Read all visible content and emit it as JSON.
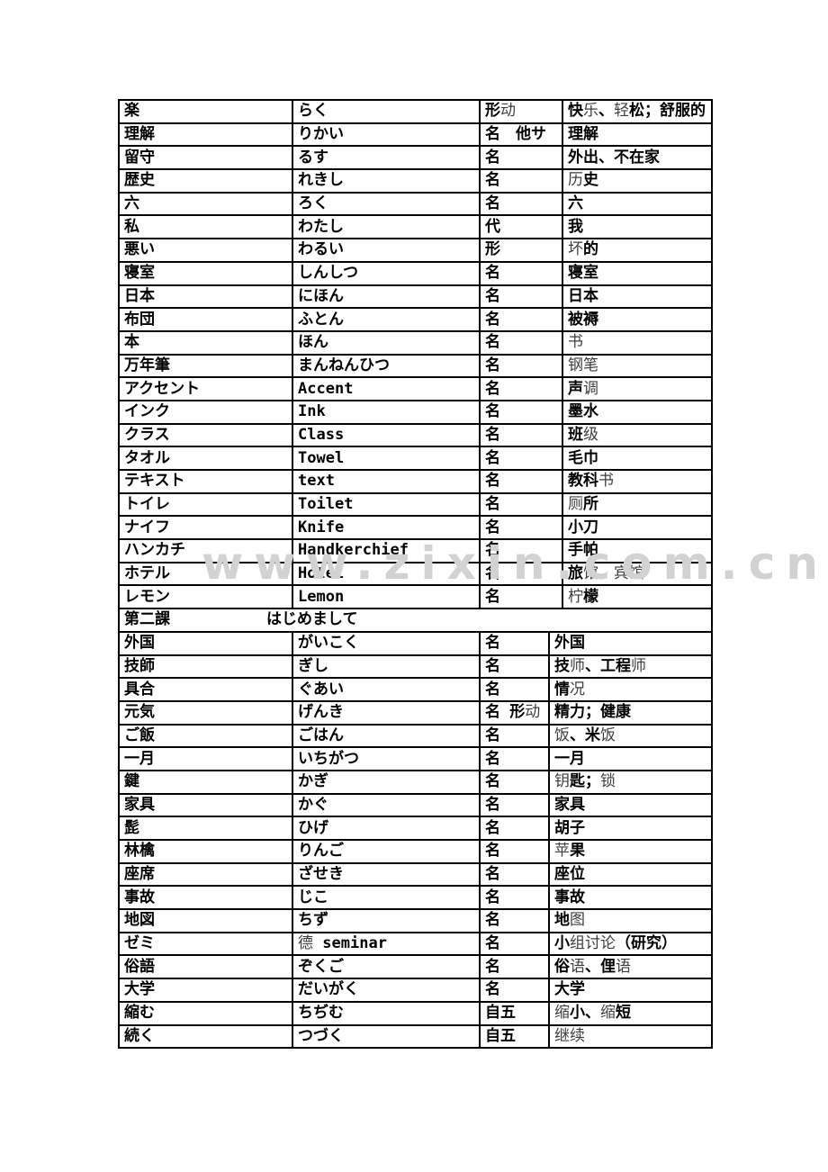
{
  "watermark": {
    "text": "www.zixin.com.cn",
    "color": "#d2d2d2"
  },
  "columns": [
    "word",
    "reading",
    "part_of_speech",
    "meaning"
  ],
  "light_chars": "动乐轻历坏书钢笔调级厕馆宾柠师况饭钥锁苹图德组讨论语缩继续",
  "section1": {
    "rows": [
      [
        "楽",
        "らく",
        "形动",
        "快乐、轻松；舒服的"
      ],
      [
        "理解",
        "りかい",
        "名　他サ",
        "理解"
      ],
      [
        "留守",
        "るす",
        "名",
        "外出、不在家"
      ],
      [
        "歴史",
        "れきし",
        "名",
        "历史"
      ],
      [
        "六",
        "ろく",
        "名",
        "六"
      ],
      [
        "私",
        "わたし",
        "代",
        "我"
      ],
      [
        "悪い",
        "わるい",
        "形",
        "坏的"
      ],
      [
        "寝室",
        "しんしつ",
        "名",
        "寝室"
      ],
      [
        "日本",
        "にほん",
        "名",
        "日本"
      ],
      [
        "布団",
        "ふとん",
        "名",
        "被褥"
      ],
      [
        "本",
        "ほん",
        "名",
        "书"
      ],
      [
        "万年筆",
        "まんねんひつ",
        "名",
        "钢笔"
      ],
      [
        "アクセント",
        "Accent",
        "名",
        "声调"
      ],
      [
        "インク",
        "Ink",
        "名",
        "墨水"
      ],
      [
        "クラス",
        "Class",
        "名",
        "班级"
      ],
      [
        "タオル",
        "Towel",
        "名",
        "毛巾"
      ],
      [
        "テキスト",
        "text",
        "名",
        "教科书"
      ],
      [
        "トイレ",
        "Toilet",
        "名",
        "厕所"
      ],
      [
        "ナイフ",
        "Knife",
        "名",
        "小刀"
      ],
      [
        "ハンカチ",
        "Handkerchief",
        "名",
        "手帕"
      ],
      [
        "ホテル",
        "Hotel",
        "名",
        "旅馆、宾馆"
      ],
      [
        "レモン",
        "Lemon",
        "名",
        "柠檬"
      ]
    ]
  },
  "lesson_header": {
    "lesson": "第二課",
    "title": "はじめまして"
  },
  "section2": {
    "rows": [
      [
        "外国",
        "がいこく",
        "名",
        "外国"
      ],
      [
        "技師",
        "ぎし",
        "名",
        "技师、工程师"
      ],
      [
        "具合",
        "ぐあい",
        "名",
        "情况"
      ],
      [
        "元気",
        "げんき",
        "名 形动",
        "精力；健康"
      ],
      [
        "ご飯",
        "ごはん",
        "名",
        "饭、米饭"
      ],
      [
        "一月",
        "いちがつ",
        "名",
        "一月"
      ],
      [
        "鍵",
        "かぎ",
        "名",
        "钥匙；锁"
      ],
      [
        "家具",
        "かぐ",
        "名",
        "家具"
      ],
      [
        "髭",
        "ひげ",
        "名",
        "胡子"
      ],
      [
        "林檎",
        "りんご",
        "名",
        "苹果"
      ],
      [
        "座席",
        "ざせき",
        "名",
        "座位"
      ],
      [
        "事故",
        "じこ",
        "名",
        "事故"
      ],
      [
        "地図",
        "ちず",
        "名",
        "地图"
      ],
      [
        "ゼミ",
        "德 seminar",
        "名",
        "小组讨论（研究）"
      ],
      [
        "俗語",
        "ぞくご",
        "名",
        "俗语、俚语"
      ],
      [
        "大学",
        "だいがく",
        "名",
        "大学"
      ],
      [
        "縮む",
        "ちぢむ",
        "自五",
        "缩小、缩短"
      ],
      [
        "続く",
        "つづく",
        "自五",
        "继续"
      ]
    ]
  }
}
